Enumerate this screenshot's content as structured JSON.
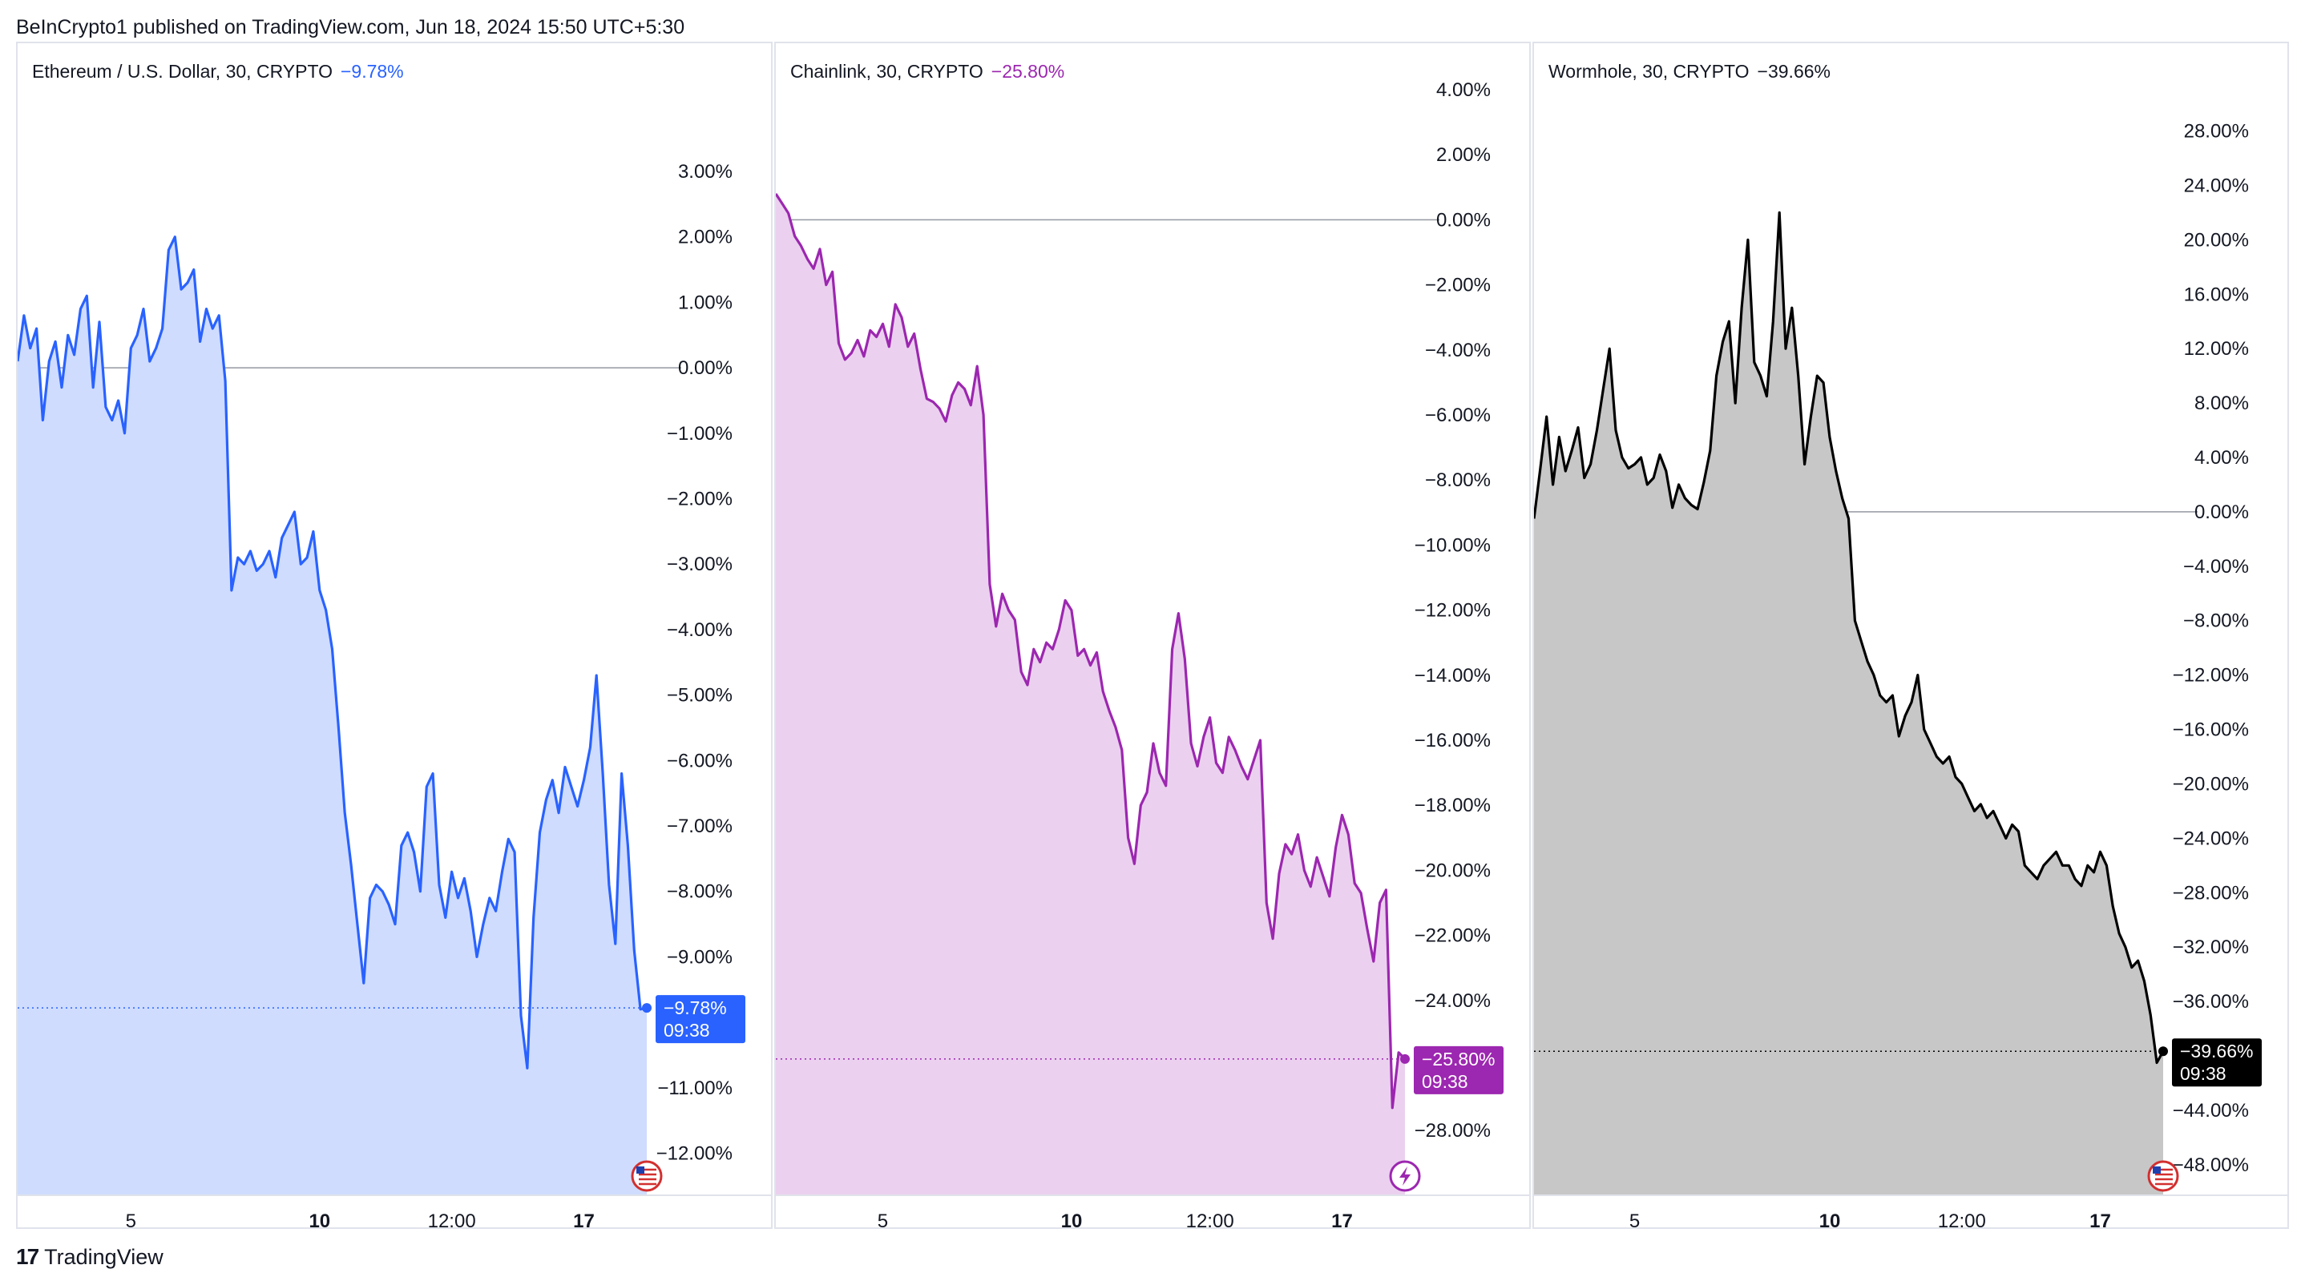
{
  "header": {
    "text": "BeInCrypto1 published on TradingView.com, Jun 18, 2024 15:50 UTC+5:30"
  },
  "brand": {
    "logo": "17",
    "name": "TradingView"
  },
  "chart_data": [
    {
      "type": "area",
      "title": "Ethereum / U.S. Dollar, 30, CRYPTO",
      "change": "−9.78%",
      "color": "#2962ff",
      "fill": "#cfdcfe",
      "ylim": [
        -12.3,
        4.2
      ],
      "yticks": [
        3,
        2,
        1,
        0,
        -1,
        -2,
        -3,
        -4,
        -5,
        -6,
        -7,
        -8,
        -9,
        -11,
        -12
      ],
      "yticklabels": [
        "3.00%",
        "2.00%",
        "1.00%",
        "0.00%",
        "−1.00%",
        "−2.00%",
        "−3.00%",
        "−4.00%",
        "−5.00%",
        "−6.00%",
        "−7.00%",
        "−8.00%",
        "−9.00%",
        "−11.00%",
        "−12.00%"
      ],
      "xlim": [
        0,
        100
      ],
      "xticks": [
        18,
        48,
        69,
        90
      ],
      "xticklabels": [
        "5",
        "10",
        "12:00",
        "17"
      ],
      "x": [
        0,
        1,
        2,
        3,
        4,
        5,
        6,
        7,
        8,
        9,
        10,
        11,
        12,
        13,
        14,
        15,
        16,
        17,
        18,
        19,
        20,
        21,
        22,
        23,
        24,
        25,
        26,
        27,
        28,
        29,
        30,
        31,
        32,
        33,
        34,
        35,
        36,
        37,
        38,
        39,
        40,
        41,
        42,
        43,
        44,
        45,
        46,
        47,
        48,
        49,
        50,
        51,
        52,
        53,
        54,
        55,
        56,
        57,
        58,
        59,
        60,
        61,
        62,
        63,
        64,
        65,
        66,
        67,
        68,
        69,
        70,
        71,
        72,
        73,
        74,
        75,
        76,
        77,
        78,
        79,
        80,
        81,
        82,
        83,
        84,
        85,
        86,
        87,
        88,
        89,
        90,
        91,
        92,
        93,
        94,
        95,
        96,
        97,
        98,
        99,
        100
      ],
      "values": [
        0.1,
        0.8,
        0.3,
        0.6,
        -0.8,
        0.1,
        0.4,
        -0.3,
        0.5,
        0.2,
        0.9,
        1.1,
        -0.3,
        0.7,
        -0.6,
        -0.8,
        -0.5,
        -1.0,
        0.3,
        0.5,
        0.9,
        0.1,
        0.3,
        0.6,
        1.8,
        2.0,
        1.2,
        1.3,
        1.5,
        0.4,
        0.9,
        0.6,
        0.8,
        -0.2,
        -3.4,
        -2.9,
        -3.0,
        -2.8,
        -3.1,
        -3.0,
        -2.8,
        -3.2,
        -2.6,
        -2.4,
        -2.2,
        -3.0,
        -2.9,
        -2.5,
        -3.4,
        -3.7,
        -4.3,
        -5.5,
        -6.8,
        -7.6,
        -8.5,
        -9.4,
        -8.1,
        -7.9,
        -8.0,
        -8.2,
        -8.5,
        -7.3,
        -7.1,
        -7.4,
        -8.0,
        -6.4,
        -6.2,
        -7.9,
        -8.4,
        -7.7,
        -8.1,
        -7.8,
        -8.3,
        -9.0,
        -8.5,
        -8.1,
        -8.3,
        -7.7,
        -7.2,
        -7.4,
        -9.9,
        -10.7,
        -8.4,
        -7.1,
        -6.6,
        -6.3,
        -6.8,
        -6.1,
        -6.4,
        -6.7,
        -6.3,
        -5.8,
        -4.7,
        -6.2,
        -7.9,
        -8.8,
        -6.2,
        -7.3,
        -8.9,
        -9.8,
        -9.78
      ],
      "last": {
        "label": "−9.78%",
        "time": "09:38",
        "value": -9.78
      },
      "badge": "us-flag-icon"
    },
    {
      "type": "area",
      "title": "Chainlink, 30, CRYPTO",
      "change": "−25.80%",
      "color": "#9c27b0",
      "fill": "#ebd1ef",
      "ylim": [
        -29.3,
        3.9
      ],
      "yticks": [
        4,
        2,
        0,
        -2,
        -4,
        -6,
        -8,
        -10,
        -12,
        -14,
        -16,
        -18,
        -20,
        -22,
        -24,
        -28
      ],
      "yticklabels": [
        "4.00%",
        "2.00%",
        "0.00%",
        "−2.00%",
        "−4.00%",
        "−6.00%",
        "−8.00%",
        "−10.00%",
        "−12.00%",
        "−14.00%",
        "−16.00%",
        "−18.00%",
        "−20.00%",
        "−22.00%",
        "−24.00%",
        "−28.00%"
      ],
      "xlim": [
        0,
        100
      ],
      "xticks": [
        17,
        47,
        69,
        90
      ],
      "xticklabels": [
        "5",
        "10",
        "12:00",
        "17"
      ],
      "x": [
        0,
        1,
        2,
        3,
        4,
        5,
        6,
        7,
        8,
        9,
        10,
        11,
        12,
        13,
        14,
        15,
        16,
        17,
        18,
        19,
        20,
        21,
        22,
        23,
        24,
        25,
        26,
        27,
        28,
        29,
        30,
        31,
        32,
        33,
        34,
        35,
        36,
        37,
        38,
        39,
        40,
        41,
        42,
        43,
        44,
        45,
        46,
        47,
        48,
        49,
        50,
        51,
        52,
        53,
        54,
        55,
        56,
        57,
        58,
        59,
        60,
        61,
        62,
        63,
        64,
        65,
        66,
        67,
        68,
        69,
        70,
        71,
        72,
        73,
        74,
        75,
        76,
        77,
        78,
        79,
        80,
        81,
        82,
        83,
        84,
        85,
        86,
        87,
        88,
        89,
        90,
        91,
        92,
        93,
        94,
        95,
        96,
        97,
        98,
        99,
        100
      ],
      "values": [
        0.8,
        0.5,
        0.2,
        -0.5,
        -0.8,
        -1.2,
        -1.5,
        -0.9,
        -2.0,
        -1.6,
        -3.8,
        -4.3,
        -4.1,
        -3.7,
        -4.2,
        -3.4,
        -3.6,
        -3.2,
        -3.9,
        -2.6,
        -3.0,
        -3.9,
        -3.5,
        -4.6,
        -5.5,
        -5.6,
        -5.8,
        -6.2,
        -5.4,
        -5.0,
        -5.2,
        -5.7,
        -4.5,
        -6.0,
        -11.2,
        -12.5,
        -11.5,
        -12.0,
        -12.3,
        -13.9,
        -14.3,
        -13.2,
        -13.6,
        -13.0,
        -13.2,
        -12.6,
        -11.7,
        -12.0,
        -13.4,
        -13.2,
        -13.7,
        -13.3,
        -14.5,
        -15.1,
        -15.6,
        -16.3,
        -19.0,
        -19.8,
        -18.0,
        -17.6,
        -16.1,
        -17.0,
        -17.4,
        -13.2,
        -12.1,
        -13.5,
        -16.1,
        -16.8,
        -15.9,
        -15.3,
        -16.7,
        -17.0,
        -15.9,
        -16.3,
        -16.8,
        -17.2,
        -16.6,
        -16.0,
        -21.0,
        -22.1,
        -20.1,
        -19.2,
        -19.5,
        -18.9,
        -20.0,
        -20.5,
        -19.6,
        -20.2,
        -20.8,
        -19.3,
        -18.3,
        -18.9,
        -20.4,
        -20.7,
        -21.8,
        -22.8,
        -21.0,
        -20.6,
        -27.3,
        -25.6,
        -25.8
      ],
      "last": {
        "label": "−25.80%",
        "time": "09:38",
        "value": -25.8
      },
      "badge": "lightning-icon"
    },
    {
      "type": "area",
      "title": "Wormhole, 30, CRYPTO",
      "change": "−39.66%",
      "color": "#000000",
      "fill": "#c7c7c7",
      "ylim": [
        -48.6,
        30.8
      ],
      "yticks": [
        28,
        24,
        20,
        16,
        12,
        8,
        4,
        0,
        -4,
        -8,
        -12,
        -16,
        -20,
        -24,
        -28,
        -32,
        -36,
        -44,
        -48
      ],
      "yticklabels": [
        "28.00%",
        "24.00%",
        "20.00%",
        "16.00%",
        "12.00%",
        "8.00%",
        "4.00%",
        "0.00%",
        "−4.00%",
        "−8.00%",
        "−12.00%",
        "−16.00%",
        "−20.00%",
        "−24.00%",
        "−28.00%",
        "−32.00%",
        "−36.00%",
        "−44.00%",
        "−48.00%"
      ],
      "xlim": [
        0,
        100
      ],
      "xticks": [
        16,
        47,
        68,
        90
      ],
      "xticklabels": [
        "5",
        "10",
        "12:00",
        "17"
      ],
      "x": [
        0,
        1,
        2,
        3,
        4,
        5,
        6,
        7,
        8,
        9,
        10,
        11,
        12,
        13,
        14,
        15,
        16,
        17,
        18,
        19,
        20,
        21,
        22,
        23,
        24,
        25,
        26,
        27,
        28,
        29,
        30,
        31,
        32,
        33,
        34,
        35,
        36,
        37,
        38,
        39,
        40,
        41,
        42,
        43,
        44,
        45,
        46,
        47,
        48,
        49,
        50,
        51,
        52,
        53,
        54,
        55,
        56,
        57,
        58,
        59,
        60,
        61,
        62,
        63,
        64,
        65,
        66,
        67,
        68,
        69,
        70,
        71,
        72,
        73,
        74,
        75,
        76,
        77,
        78,
        79,
        80,
        81,
        82,
        83,
        84,
        85,
        86,
        87,
        88,
        89,
        90,
        91,
        92,
        93,
        94,
        95,
        96,
        97,
        98,
        99,
        100
      ],
      "values": [
        -0.5,
        3.2,
        7.0,
        2.0,
        5.5,
        3.0,
        4.5,
        6.2,
        2.5,
        3.5,
        6.0,
        9.0,
        12.0,
        6.0,
        4.0,
        3.2,
        3.5,
        4.0,
        2.0,
        2.5,
        4.2,
        3.0,
        0.3,
        2.0,
        1.0,
        0.5,
        0.2,
        2.2,
        4.5,
        10.0,
        12.5,
        14.0,
        8.0,
        15.0,
        20.0,
        11.0,
        10.0,
        8.5,
        14.0,
        22.0,
        12.0,
        15.0,
        10.0,
        3.5,
        7.0,
        10.0,
        9.5,
        5.5,
        3.0,
        1.0,
        -0.5,
        -8.0,
        -9.5,
        -11.0,
        -12.0,
        -13.5,
        -14.0,
        -13.5,
        -16.5,
        -15.0,
        -14.0,
        -12.0,
        -16.0,
        -17.0,
        -18.0,
        -18.5,
        -18.0,
        -19.5,
        -20.0,
        -21.0,
        -22.0,
        -21.5,
        -22.5,
        -22.0,
        -23.0,
        -24.0,
        -23.0,
        -23.5,
        -26.0,
        -26.5,
        -27.0,
        -26.0,
        -25.5,
        -25.0,
        -26.0,
        -26.0,
        -27.0,
        -27.5,
        -26.0,
        -26.5,
        -25.0,
        -26.0,
        -29.0,
        -31.0,
        -32.0,
        -33.5,
        -33.0,
        -34.5,
        -37.0,
        -40.5,
        -39.66
      ],
      "last": {
        "label": "−39.66%",
        "time": "09:38",
        "value": -39.66
      },
      "badge": "us-flag-icon"
    }
  ]
}
